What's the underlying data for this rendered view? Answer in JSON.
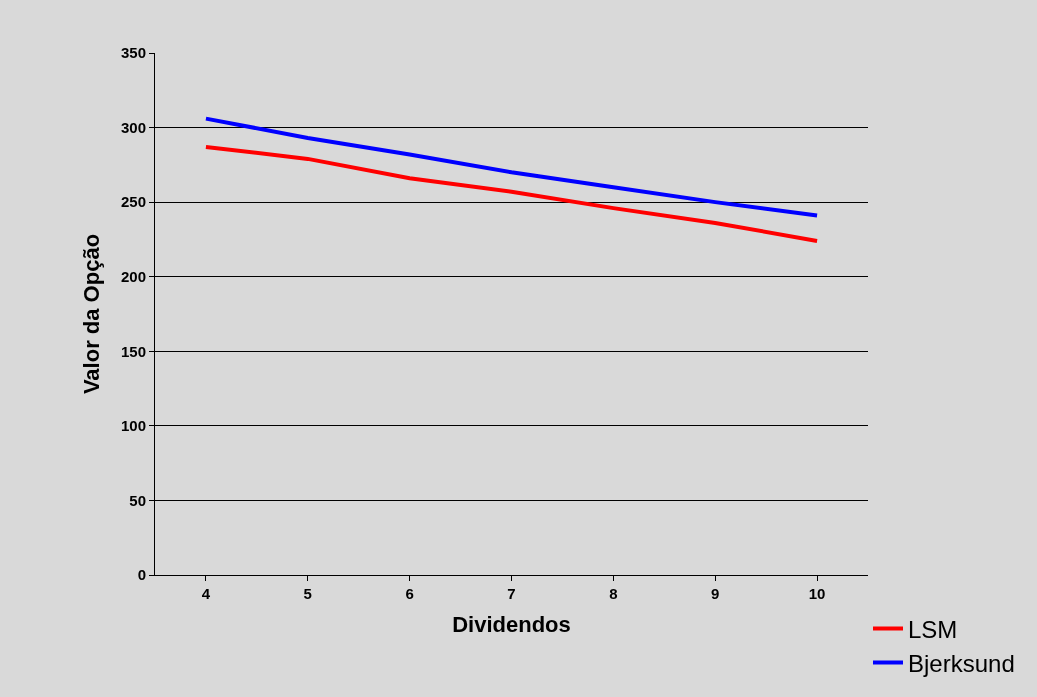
{
  "chart_data": {
    "type": "line",
    "xlabel": "Dividendos",
    "ylabel": "Valor da Opção",
    "categories": [
      "4",
      "5",
      "6",
      "7",
      "8",
      "9",
      "10"
    ],
    "series": [
      {
        "name": "LSM",
        "color": "#ff0000",
        "values": [
          287,
          279,
          266,
          257,
          246,
          236,
          224
        ]
      },
      {
        "name": "Bjerksund",
        "color": "#0000ff",
        "values": [
          306,
          293,
          282,
          270,
          260,
          250,
          241
        ]
      }
    ],
    "ylim": [
      0,
      350
    ],
    "yticks": [
      0,
      50,
      100,
      150,
      200,
      250,
      300,
      350
    ],
    "grid": "y",
    "legend": "bottom right",
    "marker": "none",
    "line_style": "solid"
  }
}
